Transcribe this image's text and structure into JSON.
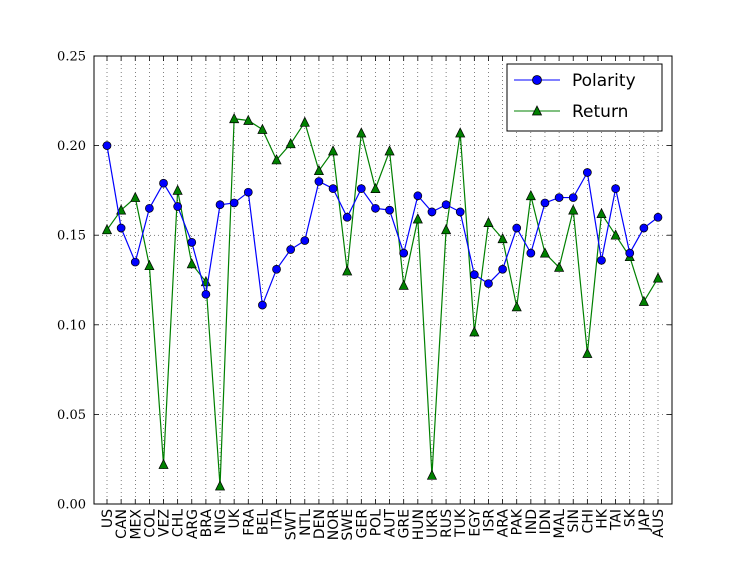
{
  "chart_data": {
    "type": "line",
    "categories": [
      "US",
      "CAN",
      "MEX",
      "COL",
      "VEZ",
      "CHL",
      "ARG",
      "BRA",
      "NIG",
      "UK",
      "FRA",
      "BEL",
      "ITA",
      "SWT",
      "NTL",
      "DEN",
      "NOR",
      "SWE",
      "GER",
      "POL",
      "AUT",
      "GRE",
      "HUN",
      "UKR",
      "RUS",
      "TUK",
      "EGY",
      "ISR",
      "ARA",
      "PAK",
      "IND",
      "IDN",
      "MAL",
      "SIN",
      "CHI",
      "HK",
      "TAI",
      "SK",
      "JAP",
      "AUS"
    ],
    "ylim": [
      0.0,
      0.25
    ],
    "yticks": [
      "0.00",
      "0.05",
      "0.10",
      "0.15",
      "0.20",
      "0.25"
    ],
    "grid": true,
    "legend_position": "top-right",
    "series": [
      {
        "name": "Polarity",
        "color": "#0000ff",
        "marker": "circle",
        "values": [
          0.2,
          0.154,
          0.135,
          0.165,
          0.179,
          0.166,
          0.146,
          0.117,
          0.167,
          0.168,
          0.174,
          0.111,
          0.131,
          0.142,
          0.147,
          0.18,
          0.176,
          0.16,
          0.176,
          0.165,
          0.164,
          0.14,
          0.172,
          0.163,
          0.167,
          0.163,
          0.128,
          0.123,
          0.131,
          0.154,
          0.14,
          0.168,
          0.171,
          0.171,
          0.185,
          0.136,
          0.176,
          0.14,
          0.154,
          0.16
        ]
      },
      {
        "name": "Return",
        "color": "#008000",
        "marker": "triangle",
        "values": [
          0.153,
          0.164,
          0.171,
          0.133,
          0.022,
          0.175,
          0.134,
          0.124,
          0.01,
          0.215,
          0.214,
          0.209,
          0.192,
          0.201,
          0.213,
          0.186,
          0.197,
          0.13,
          0.207,
          0.176,
          0.197,
          0.122,
          0.159,
          0.016,
          0.153,
          0.207,
          0.096,
          0.157,
          0.148,
          0.11,
          0.172,
          0.14,
          0.132,
          0.164,
          0.084,
          0.162,
          0.15,
          0.138,
          0.113,
          0.126
        ]
      }
    ]
  }
}
